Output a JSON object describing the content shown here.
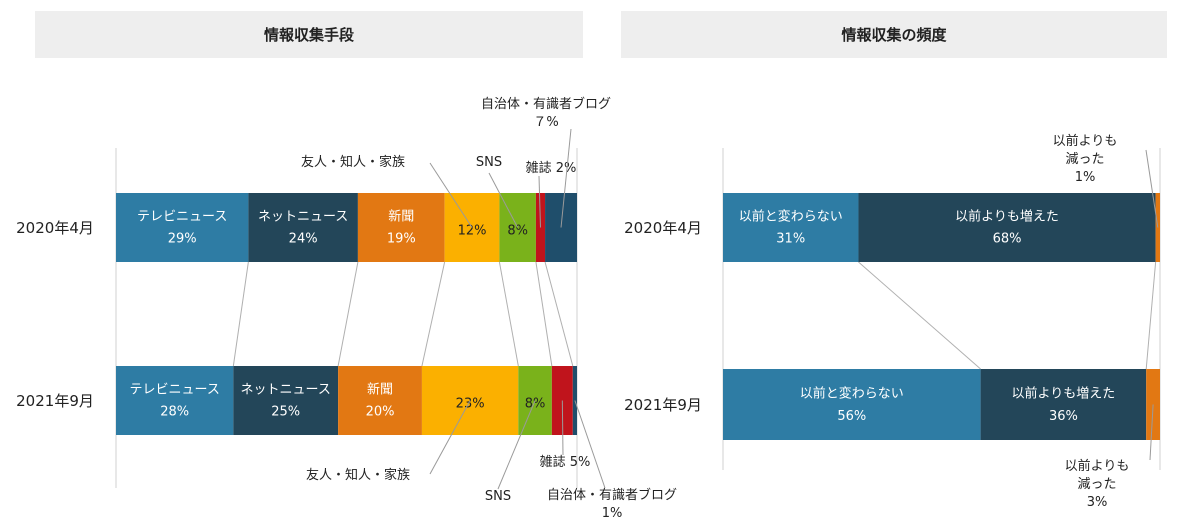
{
  "colors": {
    "tv": "#2e7ca4",
    "net": "#234659",
    "newspaper": "#e27813",
    "friends": "#fbb000",
    "sns": "#7ab21b",
    "magazine": "#c0141c",
    "blog": "#1f4e6b",
    "unchanged": "#2e7ca4",
    "increased": "#234659",
    "decreased": "#e27813",
    "header_bg": "#eeeeee",
    "connector": "#b0b0b0"
  },
  "chart_data": [
    {
      "type": "bar",
      "orientation": "horizontal-stacked-100",
      "title": "情報収集手段",
      "categories": [
        "2020年4月",
        "2021年9月"
      ],
      "series": [
        {
          "name": "テレビニュース",
          "values": [
            29,
            28
          ],
          "labels": [
            "29%",
            "28%"
          ]
        },
        {
          "name": "ネットニュース",
          "values": [
            24,
            25
          ],
          "labels": [
            "24%",
            "25%"
          ]
        },
        {
          "name": "新聞",
          "values": [
            19,
            20
          ],
          "labels": [
            "19%",
            "20%"
          ]
        },
        {
          "name": "友人・知人・家族",
          "values": [
            12,
            23
          ],
          "labels": [
            "12%",
            "23%"
          ]
        },
        {
          "name": "SNS",
          "values": [
            8,
            8
          ],
          "labels": [
            "8%",
            "8%"
          ]
        },
        {
          "name": "雑誌",
          "values": [
            2,
            5
          ]
        },
        {
          "name": "自治体・有識者ブログ",
          "values": [
            7,
            1
          ]
        }
      ],
      "callouts": {
        "top": [
          {
            "series": "友人・知人・家族",
            "lines": [
              "友人・知人・家族"
            ]
          },
          {
            "series": "SNS",
            "lines": [
              "SNS"
            ]
          },
          {
            "series": "雑誌",
            "lines": [
              "雑誌 2%"
            ]
          },
          {
            "series": "自治体・有識者ブログ",
            "lines": [
              "自治体・有識者ブログ",
              "７%"
            ]
          }
        ],
        "bottom": [
          {
            "series": "友人・知人・家族",
            "lines": [
              "友人・知人・家族"
            ]
          },
          {
            "series": "SNS",
            "lines": [
              "SNS"
            ]
          },
          {
            "series": "雑誌",
            "lines": [
              "雑誌 5%"
            ]
          },
          {
            "series": "自治体・有識者ブログ",
            "lines": [
              "自治体・有識者ブログ",
              "1%"
            ]
          }
        ]
      }
    },
    {
      "type": "bar",
      "orientation": "horizontal-stacked-100",
      "title": "情報収集の頻度",
      "categories": [
        "2020年4月",
        "2021年9月"
      ],
      "series": [
        {
          "name": "以前と変わらない",
          "values": [
            31,
            56
          ],
          "labels": [
            "31%",
            "56%"
          ]
        },
        {
          "name": "以前よりも増えた",
          "values": [
            68,
            36
          ],
          "labels": [
            "68%",
            "36%"
          ]
        },
        {
          "name": "以前よりも減った",
          "values": [
            1,
            3
          ]
        }
      ],
      "callouts": {
        "top": [
          {
            "series": "以前よりも減った",
            "lines": [
              "以前よりも",
              "減った",
              "1%"
            ]
          }
        ],
        "bottom": [
          {
            "series": "以前よりも減った",
            "lines": [
              "以前よりも",
              "減った",
              "3%"
            ]
          }
        ]
      }
    }
  ]
}
